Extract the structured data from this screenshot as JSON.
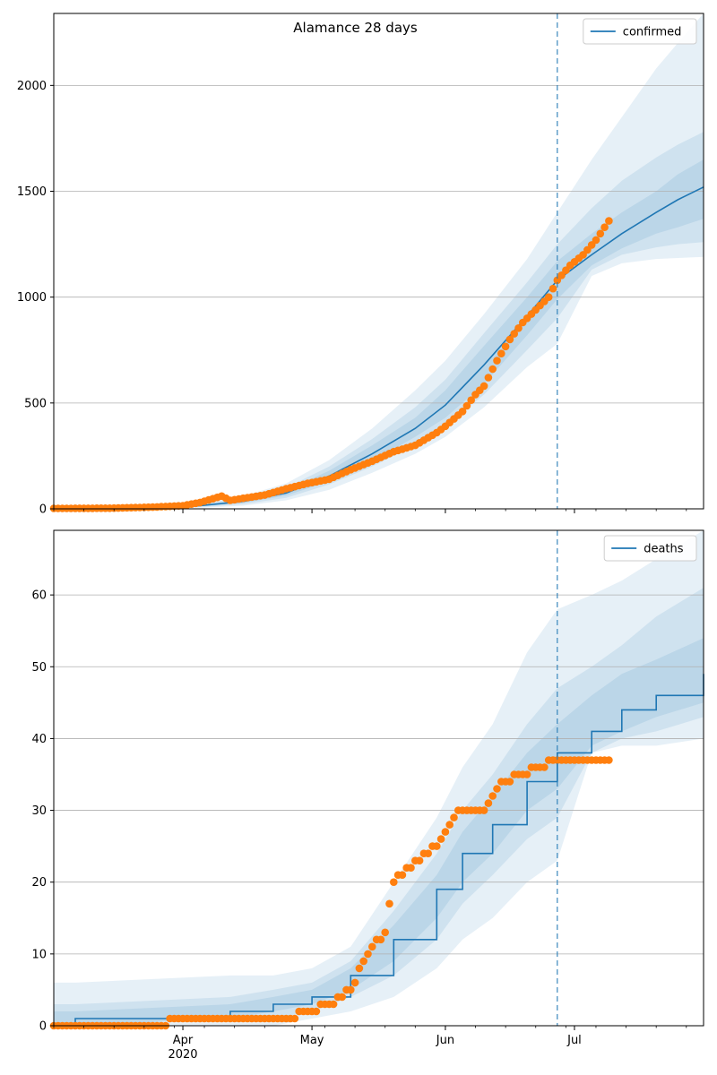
{
  "chart_data": [
    {
      "type": "line",
      "title": "Alamance 28 days",
      "xlabel": "",
      "ylabel": "",
      "x_range": [
        "2020-03-02",
        "2020-07-31"
      ],
      "ylim": [
        0,
        2340
      ],
      "y_ticks": [
        0,
        500,
        1000,
        1500,
        2000
      ],
      "grid": "horizontal",
      "legend_placement": "top-right",
      "forecast_start": "2020-06-27",
      "series": [
        {
          "name": "confirmed",
          "kind": "model-median",
          "color": "#1f77b4",
          "x": [
            "2020-03-02",
            "2020-03-25",
            "2020-04-05",
            "2020-04-15",
            "2020-04-25",
            "2020-05-05",
            "2020-05-15",
            "2020-05-25",
            "2020-06-01",
            "2020-06-10",
            "2020-06-20",
            "2020-06-27",
            "2020-07-05",
            "2020-07-12",
            "2020-07-20",
            "2020-07-25",
            "2020-07-31"
          ],
          "values": [
            0,
            5,
            15,
            35,
            75,
            155,
            260,
            380,
            490,
            680,
            910,
            1080,
            1200,
            1300,
            1400,
            1460,
            1520
          ]
        },
        {
          "name": "",
          "kind": "observed",
          "color": "#ff7f0e",
          "x": [
            "2020-03-02",
            "2020-03-15",
            "2020-03-25",
            "2020-04-01",
            "2020-04-05",
            "2020-04-10",
            "2020-04-12",
            "2020-04-15",
            "2020-04-20",
            "2020-04-25",
            "2020-04-30",
            "2020-05-05",
            "2020-05-10",
            "2020-05-15",
            "2020-05-20",
            "2020-05-25",
            "2020-05-30",
            "2020-06-01",
            "2020-06-05",
            "2020-06-08",
            "2020-06-10",
            "2020-06-13",
            "2020-06-16",
            "2020-06-19",
            "2020-06-22",
            "2020-06-25",
            "2020-06-27",
            "2020-06-30",
            "2020-07-03",
            "2020-07-06",
            "2020-07-09"
          ],
          "values": [
            2,
            3,
            8,
            15,
            30,
            60,
            40,
            50,
            65,
            95,
            120,
            140,
            185,
            225,
            270,
            300,
            360,
            390,
            460,
            540,
            580,
            700,
            800,
            880,
            940,
            1000,
            1080,
            1150,
            1200,
            1270,
            1360
          ]
        }
      ],
      "bands": [
        {
          "level": "outer",
          "upper": [
            0,
            10,
            30,
            60,
            120,
            230,
            380,
            560,
            700,
            920,
            1180,
            1400,
            1650,
            1850,
            2080,
            2200,
            2340
          ],
          "lower": [
            0,
            2,
            5,
            15,
            40,
            90,
            170,
            260,
            340,
            480,
            670,
            780,
            1100,
            1160,
            1180,
            1185,
            1190
          ]
        },
        {
          "level": "middle",
          "upper": [
            0,
            8,
            24,
            50,
            100,
            200,
            330,
            480,
            610,
            830,
            1070,
            1250,
            1420,
            1550,
            1660,
            1720,
            1780
          ],
          "lower": [
            0,
            3,
            9,
            22,
            52,
            115,
            200,
            300,
            390,
            540,
            750,
            900,
            1130,
            1200,
            1235,
            1250,
            1260
          ]
        },
        {
          "level": "inner",
          "upper": [
            0,
            6,
            20,
            43,
            88,
            180,
            300,
            430,
            560,
            770,
            1000,
            1170,
            1300,
            1400,
            1500,
            1580,
            1650
          ],
          "lower": [
            0,
            4,
            12,
            28,
            62,
            130,
            225,
            340,
            430,
            590,
            820,
            990,
            1150,
            1230,
            1300,
            1330,
            1370
          ]
        }
      ]
    },
    {
      "type": "line",
      "title": "",
      "xlabel": "",
      "ylabel": "",
      "x_range": [
        "2020-03-02",
        "2020-07-31"
      ],
      "ylim": [
        0,
        69
      ],
      "y_ticks": [
        0,
        10,
        20,
        30,
        40,
        50,
        60
      ],
      "x_tick_labels": [
        "Apr\n2020",
        "May",
        "Jun",
        "Jul"
      ],
      "x_ticks": [
        "2020-04-01",
        "2020-05-01",
        "2020-06-01",
        "2020-07-01"
      ],
      "grid": "horizontal",
      "legend_placement": "top-right",
      "forecast_start": "2020-06-27",
      "series": [
        {
          "name": "deaths",
          "kind": "model-median",
          "color": "#1f77b4",
          "x": [
            "2020-03-02",
            "2020-03-07",
            "2020-04-12",
            "2020-04-22",
            "2020-05-01",
            "2020-05-10",
            "2020-05-20",
            "2020-05-30",
            "2020-06-05",
            "2020-06-12",
            "2020-06-20",
            "2020-06-27",
            "2020-07-05",
            "2020-07-12",
            "2020-07-20",
            "2020-07-31"
          ],
          "values": [
            0,
            1,
            2,
            3,
            4,
            7,
            12,
            19,
            24,
            28,
            34,
            38,
            41,
            44,
            46,
            49
          ]
        },
        {
          "name": "",
          "kind": "observed",
          "color": "#ff7f0e",
          "x": [
            "2020-03-02",
            "2020-04-24",
            "2020-05-01",
            "2020-05-05",
            "2020-05-10",
            "2020-05-13",
            "2020-05-15",
            "2020-05-18",
            "2020-05-20",
            "2020-05-25",
            "2020-05-28",
            "2020-05-31",
            "2020-06-03",
            "2020-06-05",
            "2020-06-10",
            "2020-06-13",
            "2020-06-15",
            "2020-06-19",
            "2020-06-22",
            "2020-06-27",
            "2020-07-01",
            "2020-07-09"
          ],
          "values": [
            0,
            1,
            2,
            3,
            5,
            9,
            11,
            13,
            20,
            23,
            24,
            26,
            29,
            30,
            30,
            33,
            34,
            35,
            36,
            37,
            37,
            37
          ]
        }
      ],
      "bands": [
        {
          "level": "outer",
          "upper": [
            6,
            6,
            7,
            7,
            8,
            11,
            20,
            29,
            36,
            42,
            52,
            58,
            60,
            62,
            65,
            69
          ],
          "lower": [
            0,
            0,
            0,
            0,
            1,
            2,
            4,
            8,
            12,
            15,
            20,
            23,
            38,
            39,
            39,
            40
          ]
        },
        {
          "level": "middle",
          "upper": [
            3,
            3,
            4,
            5,
            6,
            9,
            16,
            24,
            30,
            35,
            42,
            47,
            50,
            53,
            57,
            61
          ],
          "lower": [
            0,
            0,
            1,
            1,
            2,
            4,
            7,
            12,
            17,
            21,
            26,
            29,
            38,
            40,
            41,
            43
          ]
        },
        {
          "level": "inner",
          "upper": [
            2,
            2,
            3,
            4,
            5,
            8,
            14,
            21,
            27,
            32,
            38,
            42,
            46,
            49,
            51,
            54
          ],
          "lower": [
            0,
            0,
            1,
            2,
            3,
            5,
            9,
            15,
            20,
            24,
            30,
            33,
            39,
            41,
            43,
            45
          ]
        }
      ]
    }
  ]
}
